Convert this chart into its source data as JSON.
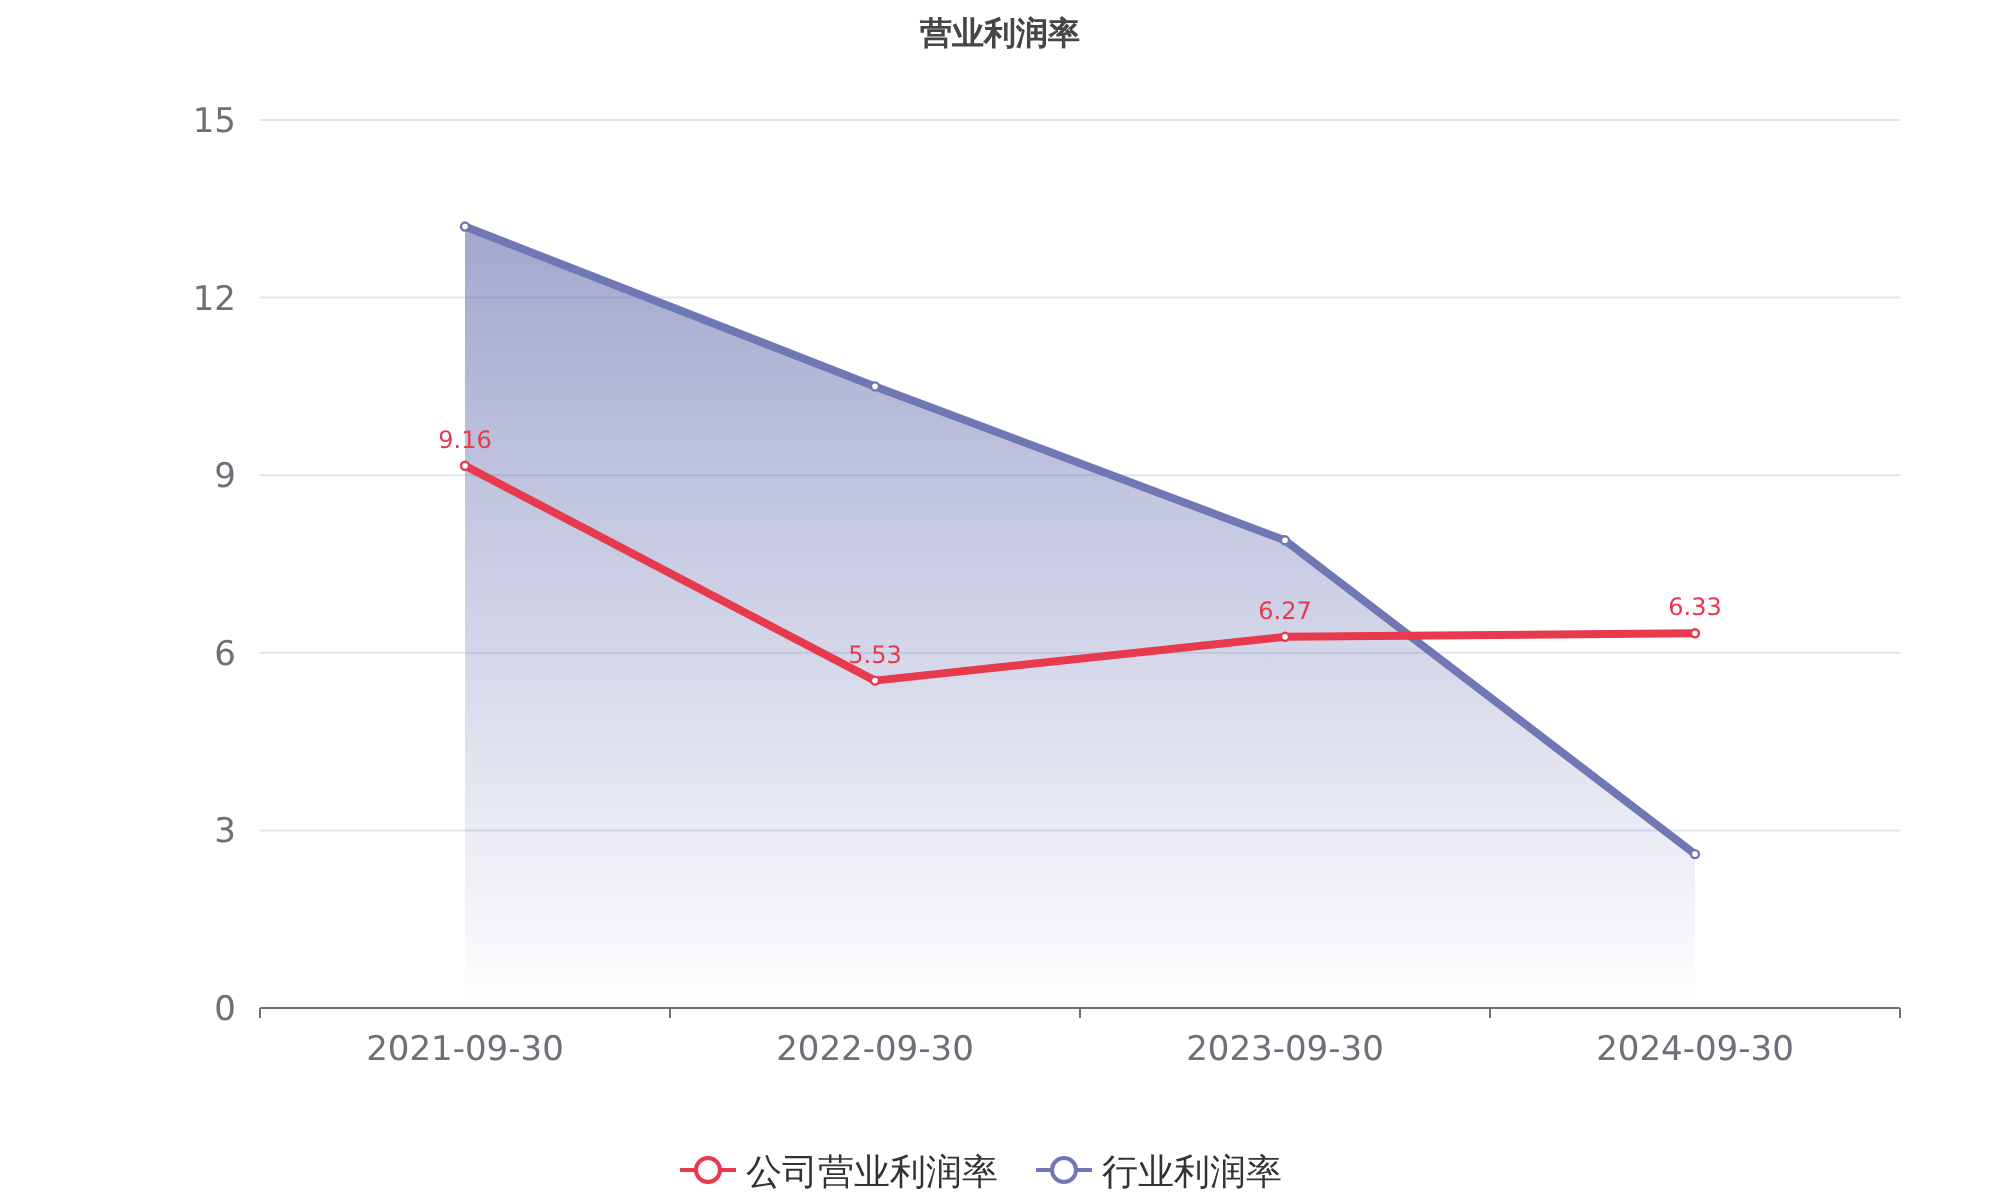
{
  "chart_data": {
    "type": "line",
    "title": "营业利润率",
    "categories": [
      "2021-09-30",
      "2022-09-30",
      "2023-09-30",
      "2024-09-30"
    ],
    "series": [
      {
        "name": "公司营业利润率",
        "color": "#e83a4f",
        "values": [
          9.16,
          5.53,
          6.27,
          6.33
        ],
        "value_labels": [
          "9.16",
          "5.53",
          "6.27",
          "6.33"
        ]
      },
      {
        "name": "行业利润率",
        "color": "#6f78b4",
        "type": "area",
        "values": [
          13.2,
          10.5,
          7.9,
          2.6
        ]
      }
    ],
    "ylim": [
      0,
      15
    ],
    "yticks": [
      0,
      3,
      6,
      9,
      12,
      15
    ],
    "grid": "y",
    "legend": "bottom",
    "marker": "circle"
  }
}
